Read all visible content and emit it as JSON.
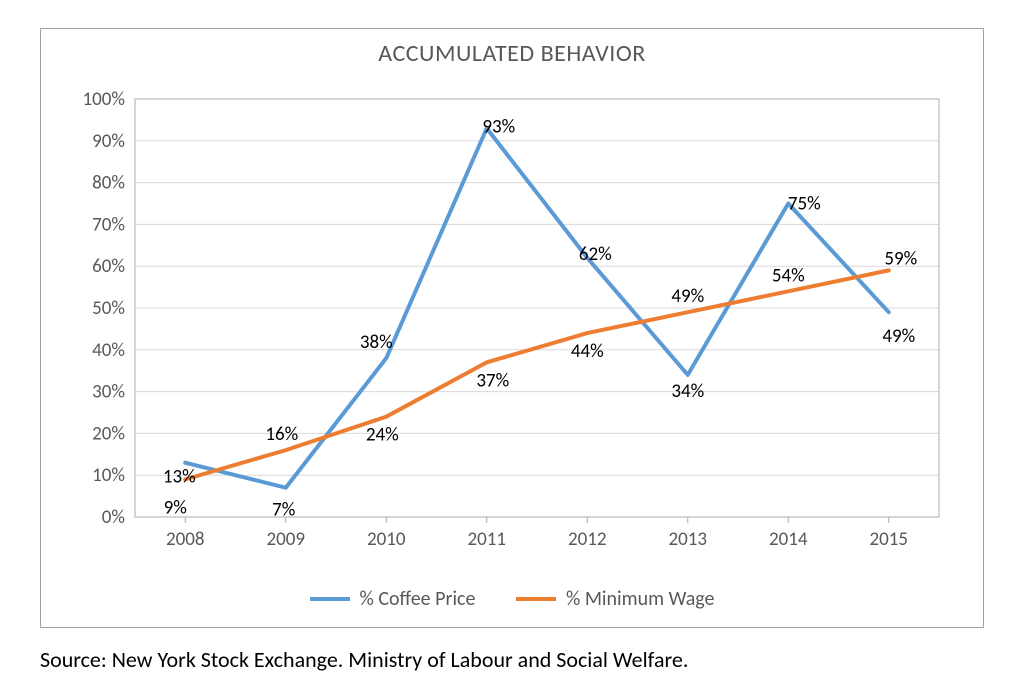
{
  "chart": {
    "type": "line",
    "title": "ACCUMULATED BEHAVIOR",
    "title_fontsize": 24,
    "title_color": "#595959",
    "background_color": "#ffffff",
    "border_color": "#a0a0a0",
    "plot_border_color": "#afabab",
    "grid_color": "#d9d9d9",
    "categories": [
      "2008",
      "2009",
      "2010",
      "2011",
      "2012",
      "2013",
      "2014",
      "2015"
    ],
    "ylim": [
      0,
      100
    ],
    "ytick_step": 10,
    "ytick_format": "percent",
    "axis_label_fontsize": 19,
    "axis_label_color": "#595959",
    "data_label_fontsize": 19,
    "data_label_color": "#000000",
    "line_width": 4,
    "marker": {
      "style": "none"
    },
    "series": [
      {
        "name": "% Coffee Price",
        "color": "#5b9bd5",
        "values": [
          13,
          7,
          38,
          93,
          62,
          34,
          75,
          49
        ],
        "label_offsets": [
          {
            "dx": -6,
            "dy": 20
          },
          {
            "dx": -2,
            "dy": 28
          },
          {
            "dx": -10,
            "dy": -10
          },
          {
            "dx": 12,
            "dy": 4
          },
          {
            "dx": 8,
            "dy": 2
          },
          {
            "dx": 0,
            "dy": 22
          },
          {
            "dx": 16,
            "dy": 6
          },
          {
            "dx": 10,
            "dy": 30
          }
        ]
      },
      {
        "name": "% Minimum Wage",
        "color": "#ed7d31",
        "values": [
          9,
          16,
          24,
          37,
          44,
          49,
          54,
          59
        ],
        "label_offsets": [
          {
            "dx": -10,
            "dy": 34
          },
          {
            "dx": -4,
            "dy": -10
          },
          {
            "dx": -4,
            "dy": 24
          },
          {
            "dx": 6,
            "dy": 24
          },
          {
            "dx": 0,
            "dy": 24
          },
          {
            "dx": 0,
            "dy": -10
          },
          {
            "dx": 0,
            "dy": -10
          },
          {
            "dx": 12,
            "dy": -6
          }
        ]
      }
    ],
    "legend": {
      "position": "bottom",
      "fontsize": 20,
      "text_color": "#595959"
    }
  },
  "source_text": "Source: New York Stock Exchange. Ministry of Labour and Social Welfare."
}
